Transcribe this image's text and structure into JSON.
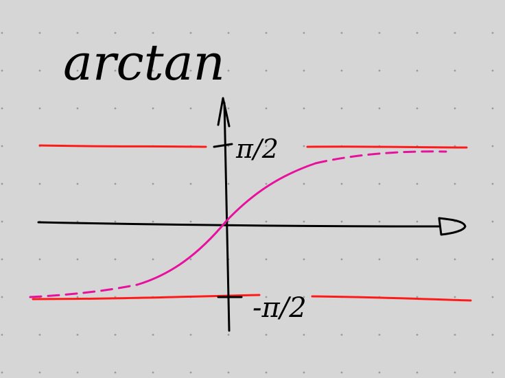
{
  "title": "arctan",
  "labels": {
    "upper_asymptote": "π/2",
    "lower_asymptote": "-π/2"
  },
  "colors": {
    "background": "#d6d6d6",
    "grid_dots": "#9a9a9a",
    "ink": "#000000",
    "asymptote": "#ff1a1a",
    "curve": "#e6119c"
  }
}
